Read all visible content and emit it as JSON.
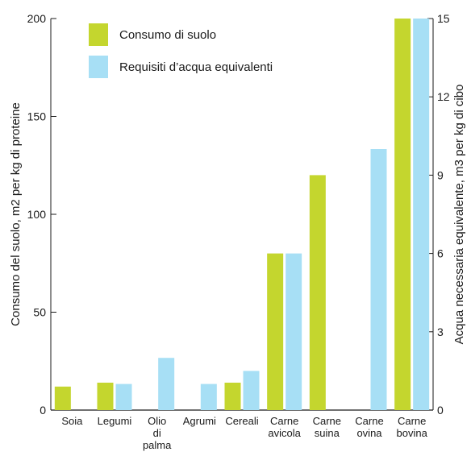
{
  "chart_data": {
    "type": "bar",
    "categories": [
      [
        "Soia"
      ],
      [
        "Legumi"
      ],
      [
        "Olio",
        "di",
        "palma"
      ],
      [
        "Agrumi"
      ],
      [
        "Cereali"
      ],
      [
        "Carne",
        "avicola"
      ],
      [
        "Carne",
        "suina"
      ],
      [
        "Carne",
        "ovina"
      ],
      [
        "Carne",
        "bovina"
      ]
    ],
    "series": [
      {
        "name": "Consumo di suolo",
        "axis": "left",
        "color": "#c4d62e",
        "values": [
          12,
          14,
          0,
          0,
          14,
          80,
          120,
          0,
          200
        ]
      },
      {
        "name": "Requisiti d’acqua equivalenti",
        "axis": "right",
        "color": "#a7dff5",
        "values": [
          0,
          1.0,
          2.0,
          1.0,
          1.5,
          6.0,
          0,
          10.0,
          15.0
        ]
      }
    ],
    "ylabel_left": "Consumo del suolo, m2 per kg di proteine",
    "ylabel_right": "Acqua necessaria equivalente, m3 per kg di cibo",
    "ylim_left": [
      0,
      200
    ],
    "yticks_left": [
      "0",
      "50",
      "100",
      "150",
      "200"
    ],
    "ylim_right": [
      0,
      15
    ],
    "yticks_right": [
      "0",
      "3",
      "6",
      "9",
      "12",
      "15"
    ],
    "legend_position": "top-left",
    "grid": false
  }
}
